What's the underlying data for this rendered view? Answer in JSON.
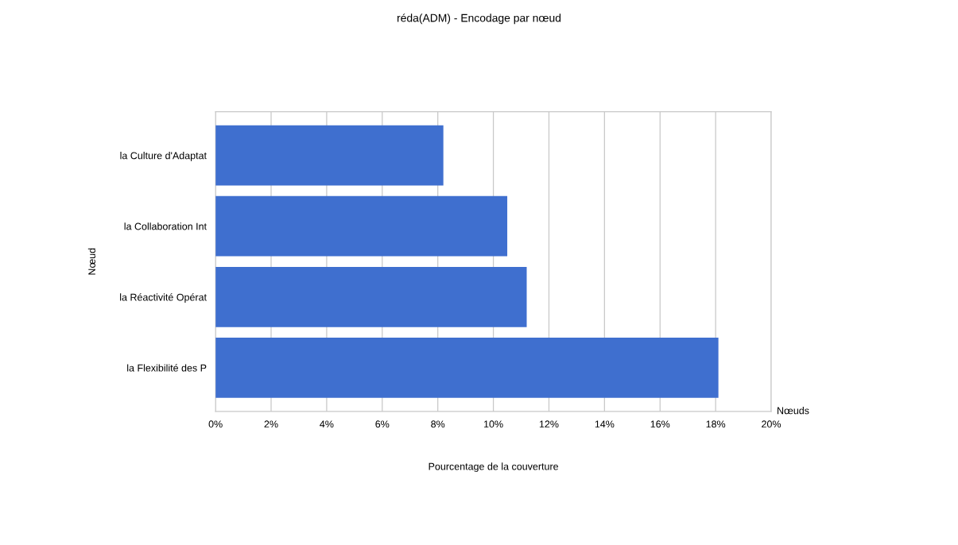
{
  "chart_data": {
    "type": "bar",
    "orientation": "horizontal",
    "title": "réda(ADM) - Encodage par nœud",
    "xlabel": "Pourcentage de la couverture",
    "ylabel": "Nœud",
    "categories": [
      "la Culture d'Adaptat",
      "la Collaboration Int",
      "la Réactivité Opérat",
      "la Flexibilité des P"
    ],
    "values": [
      8.2,
      10.5,
      11.2,
      18.1
    ],
    "color": "#3f6fcf",
    "xlim": [
      0,
      20
    ],
    "xticks": [
      {
        "value": 0,
        "label": "0%"
      },
      {
        "value": 2,
        "label": "2%"
      },
      {
        "value": 4,
        "label": "4%"
      },
      {
        "value": 6,
        "label": "6%"
      },
      {
        "value": 8,
        "label": "8%"
      },
      {
        "value": 10,
        "label": "10%"
      },
      {
        "value": 12,
        "label": "12%"
      },
      {
        "value": 14,
        "label": "14%"
      },
      {
        "value": 16,
        "label": "16%"
      },
      {
        "value": 18,
        "label": "18%"
      },
      {
        "value": 20,
        "label": "20%"
      }
    ],
    "grid": "x",
    "annotations": [
      "Nœuds"
    ]
  }
}
